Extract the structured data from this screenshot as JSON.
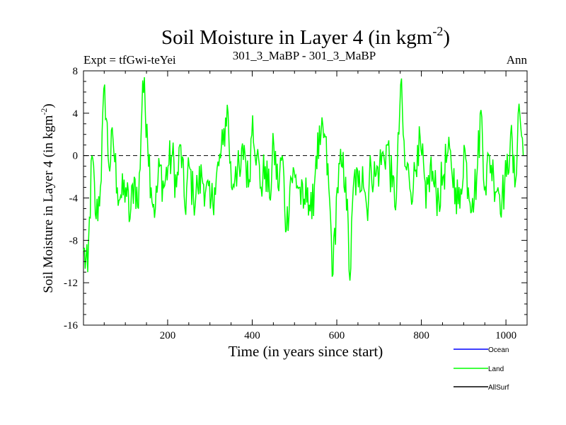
{
  "chart_data": {
    "type": "line",
    "title": "Soil Moisture in Layer 4 (in kgm",
    "title_sup": "-2",
    "title_close": ")",
    "subtitle_left": "Expt = tfGwi-teYei",
    "subtitle_center": "301_3_MaBP - 301_3_MaBP",
    "subtitle_right": "Ann",
    "xlabel": "Time (in years since start)",
    "ylabel": "Soil Moisture in Layer 4 (in kgm",
    "ylabel_sup": "-2",
    "ylabel_close": ")",
    "xlim": [
      1,
      1050
    ],
    "ylim": [
      -16,
      8
    ],
    "xticks": [
      200,
      400,
      600,
      800,
      1000
    ],
    "yticks": [
      -16,
      -12,
      -8,
      -4,
      0,
      4,
      8
    ],
    "reference_line": 0,
    "colors": {
      "Ocean": "#0000ff",
      "Land": "#00ff00",
      "AllSurf": "#000000"
    },
    "legend": [
      "Ocean",
      "Land",
      "AllSurf"
    ],
    "series": [
      {
        "name": "Land",
        "x_start": 1,
        "x_step": 10,
        "values": [
          -9,
          -11,
          0,
          -6,
          -3,
          6.7,
          -1,
          1.5,
          -3,
          -4,
          -3,
          -6,
          -2,
          -5,
          7.1,
          3,
          -3,
          -5,
          -1,
          -3,
          -1,
          0,
          -3,
          1,
          -5,
          -1,
          -4,
          -3,
          -2,
          -3,
          -5,
          -3,
          -1,
          1,
          4.8,
          -3,
          -1,
          -2,
          1,
          -3,
          3.8,
          0,
          -3,
          -1,
          -4,
          1,
          -3,
          0,
          -7,
          -2,
          -2,
          -3,
          -5,
          -3,
          -6,
          0,
          1,
          2,
          -3,
          -11.2,
          -3,
          -1,
          -2,
          -11.8,
          -2,
          -3,
          -1,
          -5,
          -1,
          -2,
          -1,
          0,
          1,
          -3,
          -4,
          6.7,
          -1,
          -2,
          -3,
          1,
          0,
          -5,
          -1,
          -3,
          -4,
          -2,
          0,
          -1,
          -3,
          -5,
          1,
          -3,
          -4,
          -2,
          4.3,
          -3,
          0,
          -2,
          -3,
          -4,
          -2,
          2,
          -3,
          4.9,
          0
        ]
      },
      {
        "name": "Ocean",
        "values": []
      },
      {
        "name": "AllSurf",
        "values": []
      }
    ]
  }
}
